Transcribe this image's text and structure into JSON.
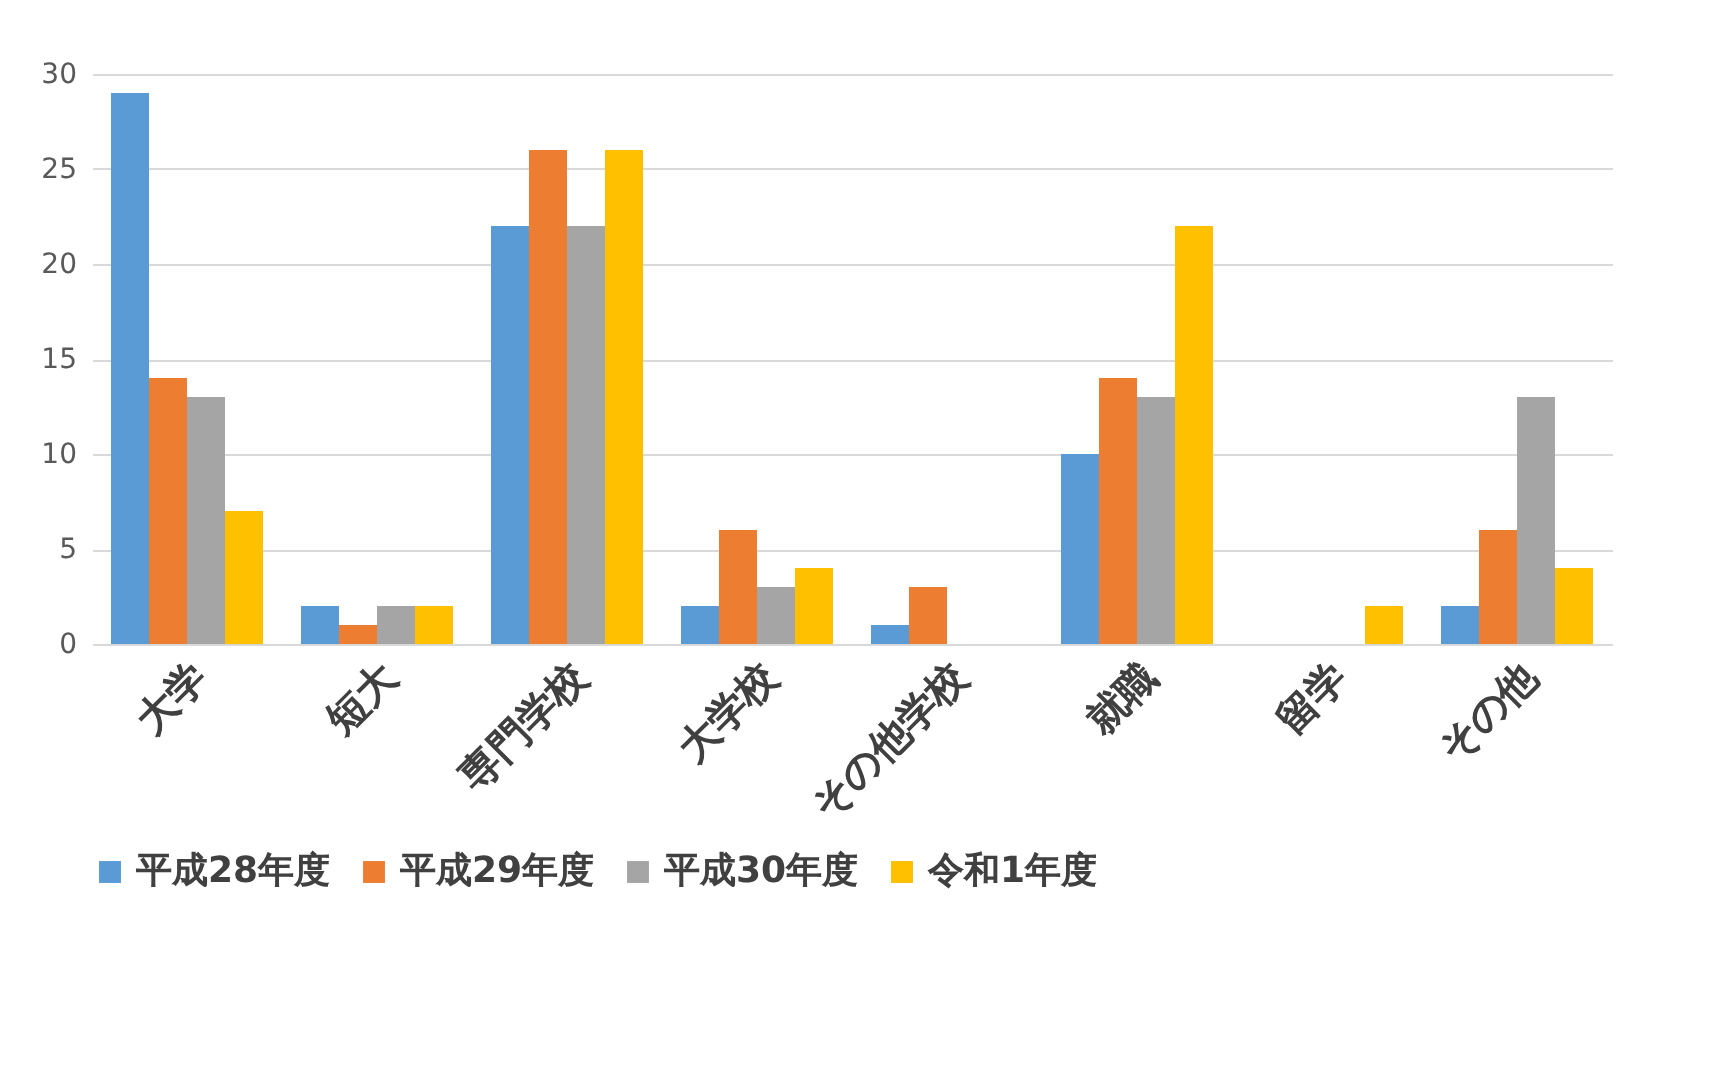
{
  "chart_data": {
    "type": "bar",
    "categories": [
      "大学",
      "短大",
      "専門学校",
      "大学校",
      "その他学校",
      "就職",
      "留学",
      "その他"
    ],
    "series": [
      {
        "name": "平成28年度",
        "color": "#5b9bd5",
        "values": [
          29,
          2,
          22,
          2,
          1,
          10,
          0,
          2
        ]
      },
      {
        "name": "平成29年度",
        "color": "#ed7d31",
        "values": [
          14,
          1,
          26,
          6,
          3,
          14,
          0,
          6
        ]
      },
      {
        "name": "平成30年度",
        "color": "#a5a5a5",
        "values": [
          13,
          2,
          22,
          3,
          0,
          13,
          0,
          13
        ]
      },
      {
        "name": "令和1年度",
        "color": "#ffc000",
        "values": [
          7,
          2,
          26,
          4,
          0,
          22,
          2,
          4
        ]
      }
    ],
    "ylim": [
      0,
      30
    ],
    "yticks": [
      0,
      5,
      10,
      15,
      20,
      25,
      30
    ],
    "grid": "y",
    "legend": "bottom"
  }
}
